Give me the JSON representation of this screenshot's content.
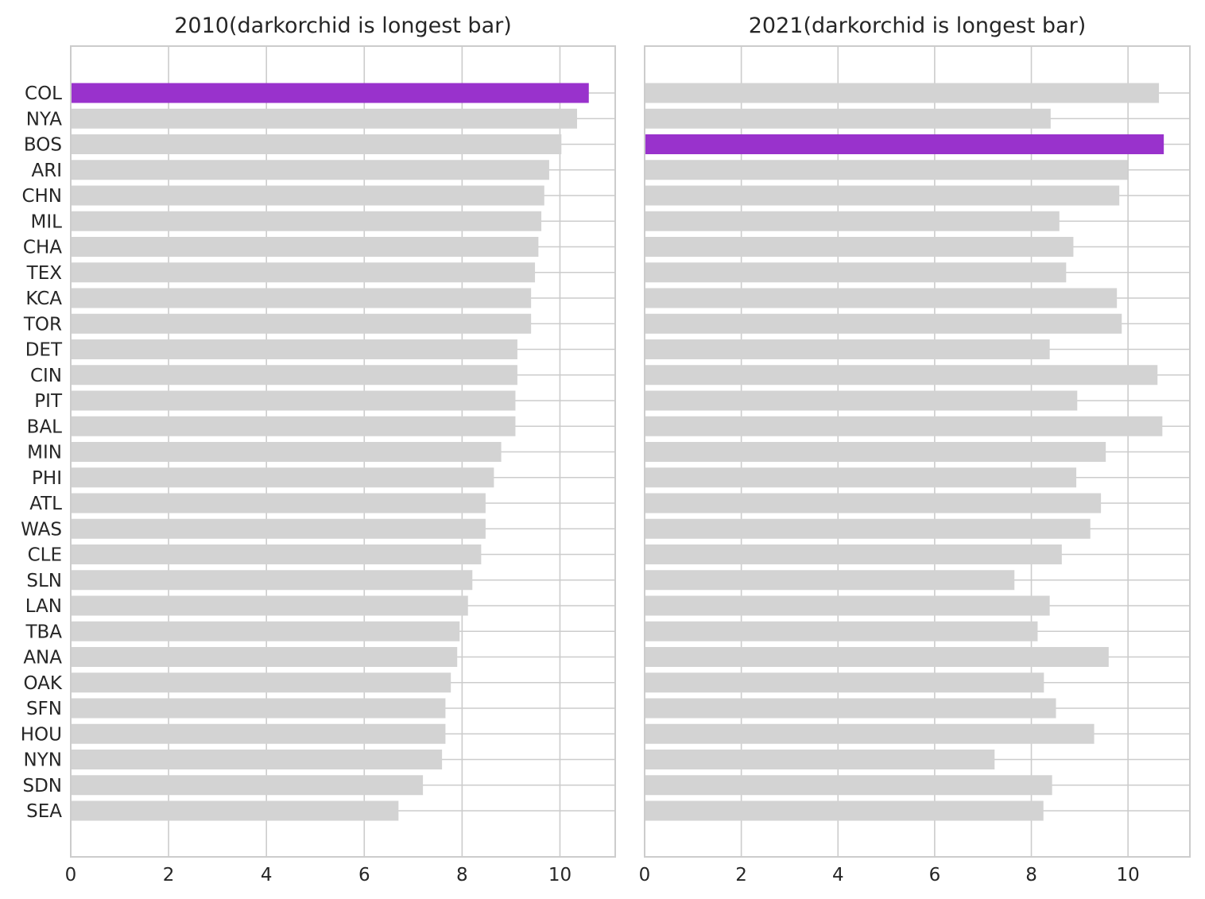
{
  "chart_data": [
    {
      "type": "bar",
      "orientation": "horizontal",
      "title": "2010(darkorchid is longest bar)",
      "categories": [
        "COL",
        "NYA",
        "BOS",
        "ARI",
        "CHN",
        "MIL",
        "CHA",
        "TEX",
        "KCA",
        "TOR",
        "DET",
        "CIN",
        "PIT",
        "BAL",
        "MIN",
        "PHI",
        "ATL",
        "WAS",
        "CLE",
        "SLN",
        "LAN",
        "TBA",
        "ANA",
        "OAK",
        "SFN",
        "HOU",
        "NYN",
        "SDN",
        "SEA"
      ],
      "values": [
        10.59,
        10.35,
        10.03,
        9.78,
        9.68,
        9.62,
        9.56,
        9.49,
        9.41,
        9.41,
        9.13,
        9.13,
        9.09,
        9.09,
        8.8,
        8.65,
        8.48,
        8.48,
        8.39,
        8.21,
        8.12,
        7.95,
        7.9,
        7.77,
        7.66,
        7.66,
        7.59,
        7.2,
        6.7
      ],
      "highlight_index": 0,
      "xlim": [
        0,
        11.13
      ],
      "xticks": [
        "0",
        "2",
        "4",
        "6",
        "8",
        "10"
      ],
      "grid": true,
      "show_yticklabels": true
    },
    {
      "type": "bar",
      "orientation": "horizontal",
      "title": "2021(darkorchid is longest bar)",
      "categories": [
        "COL",
        "NYA",
        "BOS",
        "ARI",
        "CHN",
        "MIL",
        "CHA",
        "TEX",
        "KCA",
        "TOR",
        "DET",
        "CIN",
        "PIT",
        "BAL",
        "MIN",
        "PHI",
        "ATL",
        "WAS",
        "CLE",
        "SLN",
        "LAN",
        "TBA",
        "ANA",
        "OAK",
        "SFN",
        "HOU",
        "NYN",
        "SDN",
        "SEA"
      ],
      "values": [
        10.64,
        8.4,
        10.74,
        9.99,
        9.82,
        8.58,
        8.87,
        8.72,
        9.77,
        9.87,
        8.38,
        10.61,
        8.95,
        10.71,
        9.54,
        8.93,
        9.44,
        9.22,
        8.63,
        7.65,
        8.38,
        8.13,
        9.6,
        8.26,
        8.51,
        9.3,
        7.24,
        8.43,
        8.25
      ],
      "highlight_index": 2,
      "xlim": [
        0,
        11.28
      ],
      "xticks": [
        "0",
        "2",
        "4",
        "6",
        "8",
        "10"
      ],
      "grid": true,
      "show_yticklabels": false
    }
  ],
  "colors": {
    "highlight": "#9932cc",
    "bar": "#d3d3d3",
    "grid": "#cccccc",
    "text": "#262626"
  }
}
